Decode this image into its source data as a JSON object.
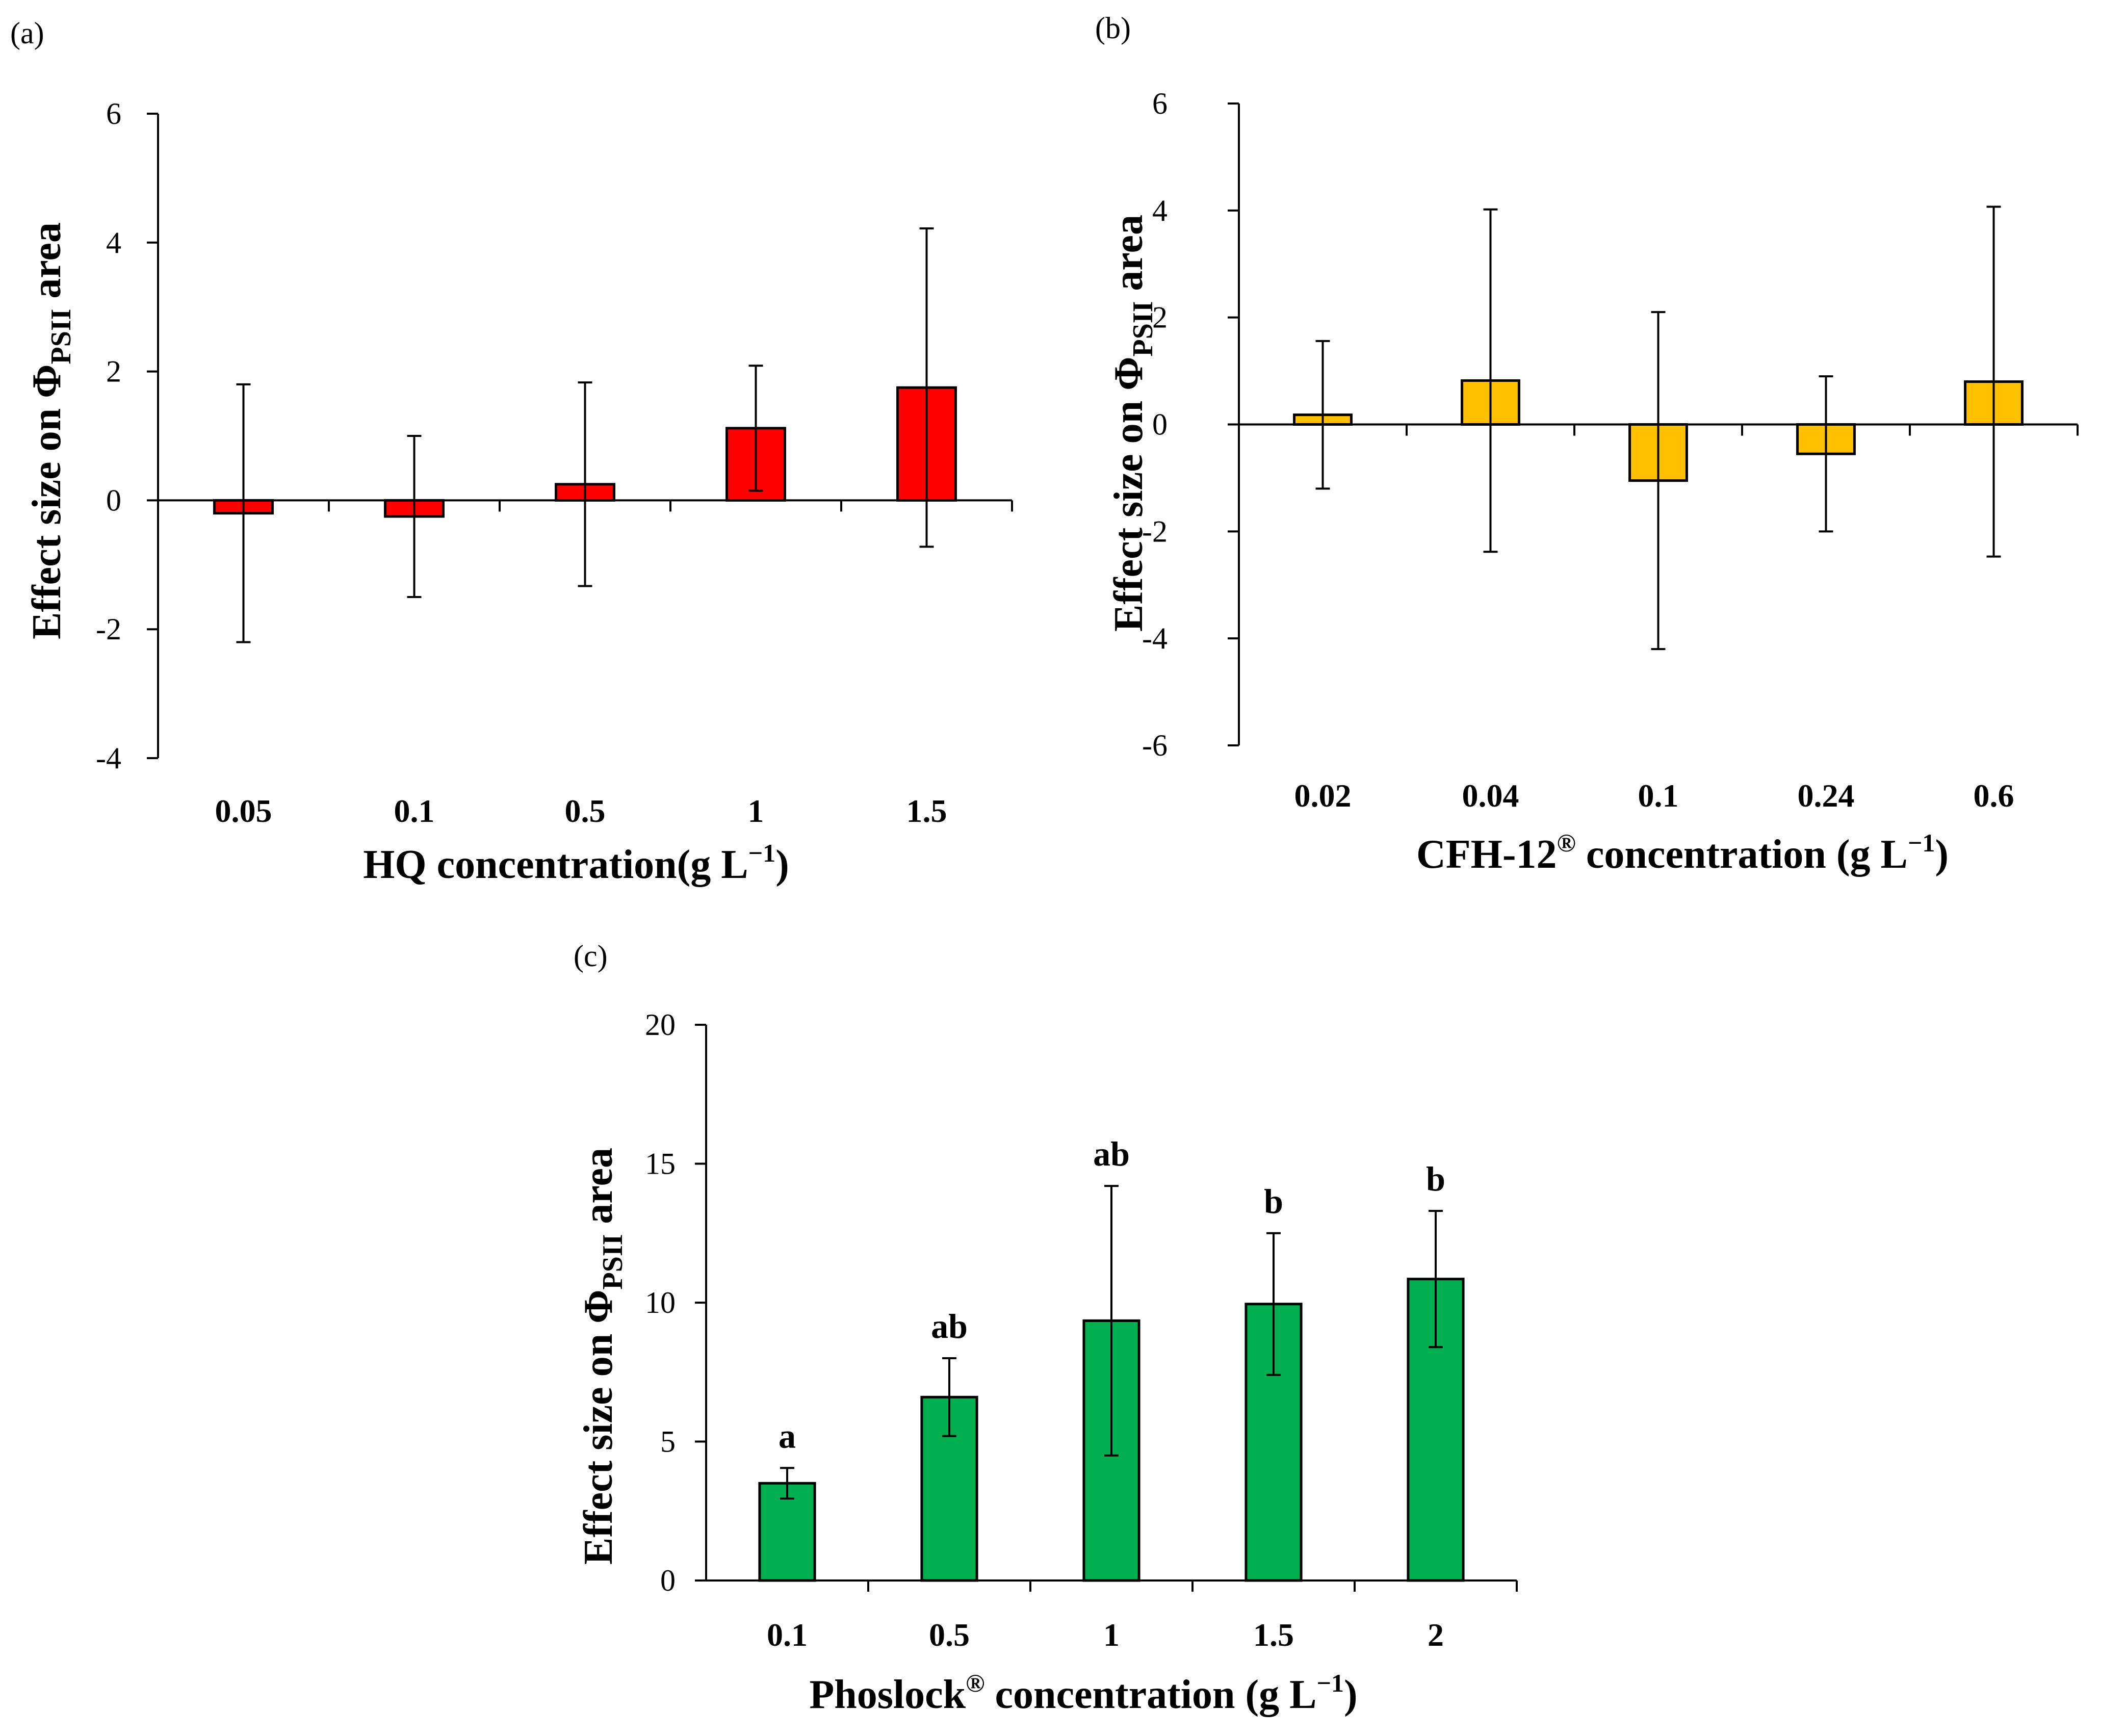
{
  "chart_data": [
    {
      "type": "bar",
      "panel_label": "(a)",
      "categories": [
        "0.05",
        "0.1",
        "0.5",
        "1",
        "1.5"
      ],
      "values": [
        -0.2,
        -0.25,
        0.25,
        1.12,
        1.75
      ],
      "errors": [
        2.0,
        1.25,
        1.58,
        0.97,
        2.47
      ],
      "ylim": [
        -4,
        6
      ],
      "yticks": [
        "6",
        "4",
        "2",
        "0",
        "-2",
        "-4"
      ],
      "ylabel": {
        "prefix": "Effect size on Φ",
        "sub": "PSII",
        "suffix": " area"
      },
      "xlabel": {
        "main": "HQ concentration(g L",
        "sup": "−1",
        "end": ")"
      },
      "color": "#ff0000"
    },
    {
      "type": "bar",
      "panel_label": "(b)",
      "categories": [
        "0.02",
        "0.04",
        "0.1",
        "0.24",
        "0.6"
      ],
      "values": [
        0.18,
        0.82,
        -1.05,
        -0.55,
        0.8
      ],
      "errors": [
        1.38,
        3.2,
        3.15,
        1.45,
        3.27
      ],
      "ylim": [
        -6,
        6
      ],
      "yticks": [
        "6",
        "4",
        "2",
        "0",
        "-2",
        "-4",
        "-6"
      ],
      "ylabel": {
        "prefix": "Effect size on Φ",
        "sub": "PSII",
        "suffix": " area"
      },
      "xlabel": {
        "main": "CFH-12",
        "sup": "®",
        "end": " concentration (g L",
        "sup2": "−1",
        "end2": ")"
      },
      "color": "#ffc000"
    },
    {
      "type": "bar",
      "panel_label": "(c)",
      "categories": [
        "0.1",
        "0.5",
        "1",
        "1.5",
        "2"
      ],
      "values": [
        3.5,
        6.6,
        9.35,
        9.95,
        10.85
      ],
      "errors": [
        0.55,
        1.4,
        4.85,
        2.55,
        2.45
      ],
      "significance": [
        "a",
        "ab",
        "ab",
        "b",
        "b"
      ],
      "ylim": [
        0,
        20
      ],
      "yticks": [
        "20",
        "15",
        "10",
        "5",
        "0"
      ],
      "ylabel": {
        "prefix": "Effect size on Φ",
        "sub": "PSII",
        "suffix": " area"
      },
      "xlabel": {
        "main": "Phoslock",
        "sup": "®",
        "end": " concentration (g L",
        "sup2": "−1",
        "end2": ")"
      },
      "color": "#00b050"
    }
  ]
}
